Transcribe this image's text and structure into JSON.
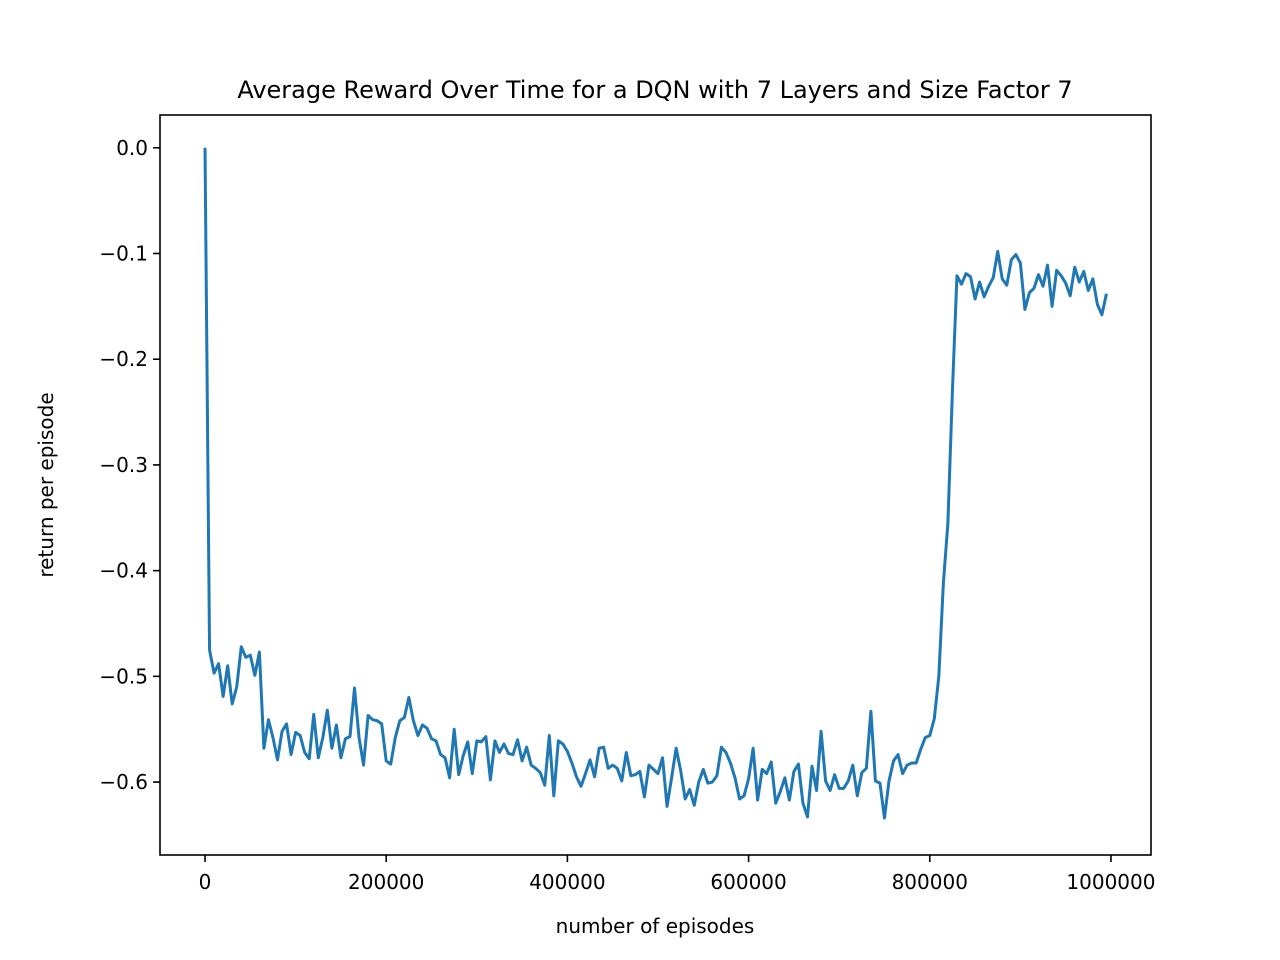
{
  "chart_data": {
    "type": "line",
    "title": "Average Reward Over Time for a DQN with 7 Layers and Size Factor 7",
    "x_label": "number of episodes",
    "y_label": "return per episode",
    "color": "#1f77b4",
    "x": [
      0,
      5000,
      10000,
      15000,
      20000,
      25000,
      30000,
      35000,
      40000,
      45000,
      50000,
      55000,
      60000,
      65000,
      70000,
      75000,
      80000,
      85000,
      90000,
      95000,
      100000,
      105000,
      110000,
      115000,
      120000,
      125000,
      130000,
      135000,
      140000,
      145000,
      150000,
      155000,
      160000,
      165000,
      170000,
      175000,
      180000,
      185000,
      190000,
      195000,
      200000,
      205000,
      210000,
      215000,
      220000,
      225000,
      230000,
      235000,
      240000,
      245000,
      250000,
      255000,
      260000,
      265000,
      270000,
      275000,
      280000,
      285000,
      290000,
      295000,
      300000,
      305000,
      310000,
      315000,
      320000,
      325000,
      330000,
      335000,
      340000,
      345000,
      350000,
      355000,
      360000,
      365000,
      370000,
      375000,
      380000,
      385000,
      390000,
      395000,
      400000,
      405000,
      410000,
      415000,
      420000,
      425000,
      430000,
      435000,
      440000,
      445000,
      450000,
      455000,
      460000,
      465000,
      470000,
      475000,
      480000,
      485000,
      490000,
      495000,
      500000,
      505000,
      510000,
      515000,
      520000,
      525000,
      530000,
      535000,
      540000,
      545000,
      550000,
      555000,
      560000,
      565000,
      570000,
      575000,
      580000,
      585000,
      590000,
      595000,
      600000,
      605000,
      610000,
      615000,
      620000,
      625000,
      630000,
      635000,
      640000,
      645000,
      650000,
      655000,
      660000,
      665000,
      670000,
      675000,
      680000,
      685000,
      690000,
      695000,
      700000,
      705000,
      710000,
      715000,
      720000,
      725000,
      730000,
      735000,
      740000,
      745000,
      750000,
      755000,
      760000,
      765000,
      770000,
      775000,
      780000,
      785000,
      790000,
      795000,
      800000,
      805000,
      810000,
      815000,
      820000,
      825000,
      830000,
      835000,
      840000,
      845000,
      850000,
      855000,
      860000,
      865000,
      870000,
      875000,
      880000,
      885000,
      890000,
      895000,
      900000,
      905000,
      910000,
      915000,
      920000,
      925000,
      930000,
      935000,
      940000,
      945000,
      950000,
      955000,
      960000,
      965000,
      970000,
      975000,
      980000,
      985000,
      990000,
      995000
    ],
    "values": [
      0.0,
      -0.475,
      -0.497,
      -0.488,
      -0.519,
      -0.49,
      -0.526,
      -0.51,
      -0.472,
      -0.482,
      -0.48,
      -0.499,
      -0.477,
      -0.568,
      -0.541,
      -0.558,
      -0.579,
      -0.552,
      -0.545,
      -0.574,
      -0.553,
      -0.556,
      -0.572,
      -0.578,
      -0.536,
      -0.577,
      -0.558,
      -0.532,
      -0.568,
      -0.546,
      -0.577,
      -0.559,
      -0.557,
      -0.511,
      -0.558,
      -0.584,
      -0.537,
      -0.541,
      -0.542,
      -0.545,
      -0.58,
      -0.583,
      -0.558,
      -0.542,
      -0.539,
      -0.52,
      -0.542,
      -0.556,
      -0.546,
      -0.549,
      -0.559,
      -0.561,
      -0.574,
      -0.577,
      -0.596,
      -0.55,
      -0.593,
      -0.575,
      -0.562,
      -0.592,
      -0.561,
      -0.562,
      -0.557,
      -0.598,
      -0.561,
      -0.572,
      -0.564,
      -0.573,
      -0.574,
      -0.56,
      -0.58,
      -0.567,
      -0.584,
      -0.587,
      -0.591,
      -0.603,
      -0.556,
      -0.613,
      -0.561,
      -0.564,
      -0.571,
      -0.582,
      -0.595,
      -0.604,
      -0.592,
      -0.579,
      -0.595,
      -0.568,
      -0.567,
      -0.587,
      -0.584,
      -0.587,
      -0.599,
      -0.572,
      -0.594,
      -0.593,
      -0.59,
      -0.614,
      -0.584,
      -0.588,
      -0.592,
      -0.577,
      -0.623,
      -0.596,
      -0.568,
      -0.589,
      -0.616,
      -0.607,
      -0.622,
      -0.6,
      -0.588,
      -0.601,
      -0.6,
      -0.594,
      -0.567,
      -0.572,
      -0.582,
      -0.596,
      -0.616,
      -0.613,
      -0.597,
      -0.568,
      -0.617,
      -0.588,
      -0.592,
      -0.581,
      -0.62,
      -0.609,
      -0.596,
      -0.617,
      -0.59,
      -0.583,
      -0.62,
      -0.633,
      -0.585,
      -0.608,
      -0.552,
      -0.599,
      -0.608,
      -0.593,
      -0.606,
      -0.606,
      -0.599,
      -0.584,
      -0.613,
      -0.591,
      -0.587,
      -0.533,
      -0.599,
      -0.601,
      -0.634,
      -0.599,
      -0.58,
      -0.574,
      -0.592,
      -0.584,
      -0.582,
      -0.582,
      -0.569,
      -0.558,
      -0.556,
      -0.54,
      -0.5,
      -0.412,
      -0.355,
      -0.23,
      -0.121,
      -0.129,
      -0.119,
      -0.122,
      -0.143,
      -0.127,
      -0.141,
      -0.131,
      -0.123,
      -0.098,
      -0.124,
      -0.13,
      -0.106,
      -0.101,
      -0.109,
      -0.153,
      -0.137,
      -0.133,
      -0.12,
      -0.131,
      -0.111,
      -0.15,
      -0.116,
      -0.121,
      -0.128,
      -0.14,
      -0.113,
      -0.127,
      -0.117,
      -0.135,
      -0.124,
      -0.148,
      -0.158,
      -0.138
    ],
    "xlim": [
      -49700,
      1044200
    ],
    "ylim": [
      -0.669,
      0.031
    ],
    "xticks": [
      0,
      200000,
      400000,
      600000,
      800000,
      1000000
    ],
    "yticks": [
      {
        "value": -0.6,
        "label": "−0.6"
      },
      {
        "value": -0.5,
        "label": "−0.5"
      },
      {
        "value": -0.4,
        "label": "−0.4"
      },
      {
        "value": -0.3,
        "label": "−0.3"
      },
      {
        "value": -0.2,
        "label": "−0.2"
      },
      {
        "value": -0.1,
        "label": "−0.1"
      },
      {
        "value": 0,
        "label": "0.0"
      }
    ]
  }
}
